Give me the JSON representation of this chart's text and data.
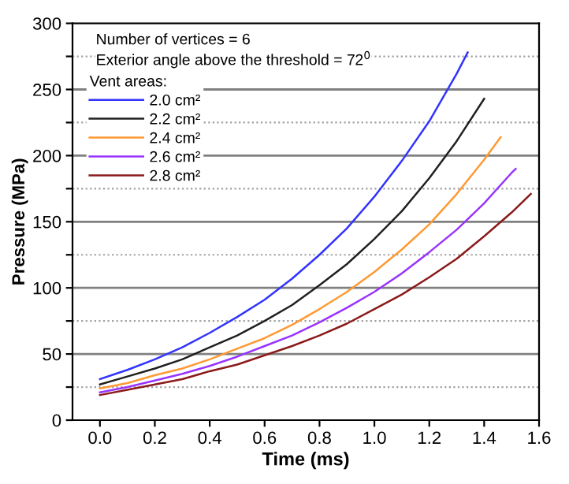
{
  "chart_data": {
    "type": "line",
    "xlabel": "Time (ms)",
    "ylabel": "Pressure (MPa)",
    "annotations": [
      "Number of vertices = 6",
      "Exterior angle above the threshold = 72$^{0}$"
    ],
    "legend_title": "Vent areas:",
    "legend": "top left",
    "grid": "y",
    "line_style": "solid",
    "marker": "none",
    "xlim": [
      -0.1,
      1.6
    ],
    "xticks": [
      {
        "value": 0,
        "label": "0.0"
      },
      0.2,
      0.4,
      0.6,
      0.8,
      {
        "value": 1,
        "label": "1.0"
      },
      1.2,
      1.4,
      1.6
    ],
    "ylim": [
      0,
      300
    ],
    "yticks": [
      0,
      {
        "value": 25,
        "label": null
      },
      50,
      {
        "value": 75,
        "label": null
      },
      100,
      {
        "value": 125,
        "label": null
      },
      150,
      {
        "value": 175,
        "label": null
      },
      200,
      {
        "value": 225,
        "label": null
      },
      250,
      {
        "value": 275,
        "label": null
      },
      300
    ],
    "series": [
      {
        "name": "2.0 cm²",
        "color": "#3333ff",
        "x": [
          0,
          0.1,
          0.2,
          0.3,
          0.4,
          0.5,
          0.6,
          0.7,
          0.8,
          0.9,
          1.0,
          1.1,
          1.2,
          1.3,
          1.34
        ],
        "values": [
          31,
          38,
          46,
          55,
          66,
          78,
          91,
          107,
          125,
          145,
          169,
          196,
          226,
          262,
          278
        ]
      },
      {
        "name": "2.2 cm²",
        "color": "#202020",
        "x": [
          0,
          0.1,
          0.2,
          0.3,
          0.4,
          0.5,
          0.6,
          0.7,
          0.8,
          0.9,
          1.0,
          1.1,
          1.2,
          1.3,
          1.4
        ],
        "values": [
          27,
          33,
          39,
          46,
          55,
          64,
          75,
          87,
          102,
          118,
          137,
          158,
          183,
          211,
          243
        ]
      },
      {
        "name": "2.4 cm²",
        "color": "#ff9933",
        "x": [
          0,
          0.1,
          0.2,
          0.3,
          0.4,
          0.5,
          0.6,
          0.7,
          0.8,
          0.9,
          1.0,
          1.1,
          1.2,
          1.3,
          1.4,
          1.46
        ],
        "values": [
          24,
          28,
          34,
          39,
          46,
          54,
          62,
          72,
          84,
          97,
          112,
          129,
          148,
          171,
          197,
          214
        ]
      },
      {
        "name": "2.6 cm²",
        "color": "#9933ff",
        "x": [
          0,
          0.1,
          0.2,
          0.3,
          0.4,
          0.5,
          0.6,
          0.7,
          0.8,
          0.9,
          1.0,
          1.1,
          1.2,
          1.3,
          1.4,
          1.5,
          1.515
        ],
        "values": [
          21,
          25,
          30,
          35,
          41,
          48,
          56,
          64,
          74,
          85,
          97,
          111,
          127,
          144,
          164,
          187,
          190
        ]
      },
      {
        "name": "2.8 cm²",
        "color": "#8b1a1a",
        "x": [
          0,
          0.1,
          0.2,
          0.3,
          0.4,
          0.5,
          0.6,
          0.7,
          0.8,
          0.9,
          1.0,
          1.1,
          1.2,
          1.3,
          1.4,
          1.5,
          1.57
        ],
        "values": [
          19,
          23,
          27,
          31,
          37,
          42,
          49,
          56,
          64,
          73,
          84,
          95,
          108,
          122,
          139,
          157,
          171
        ]
      }
    ]
  }
}
